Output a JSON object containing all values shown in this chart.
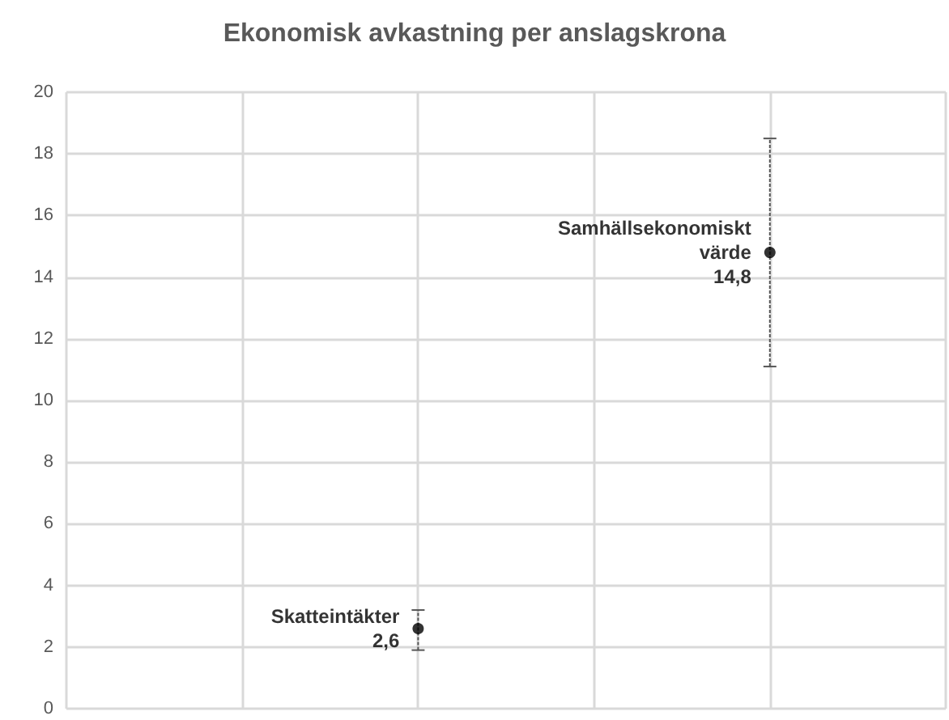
{
  "chart_data": {
    "type": "scatter",
    "title": "Ekonomisk avkastning per anslagskrona",
    "categories": [
      null,
      null,
      null,
      null,
      null,
      null
    ],
    "ylim": [
      0,
      20
    ],
    "yticks": [
      0,
      2,
      4,
      6,
      8,
      10,
      12,
      14,
      16,
      18,
      20
    ],
    "tick_labels": "y",
    "grid": true,
    "marker": "circle",
    "series": [
      {
        "name": "Skatteintäkter",
        "color": "#000000",
        "values": [
          null,
          null,
          2.6,
          null,
          null,
          null
        ],
        "errors": [
          null,
          null,
          [
            1.9,
            3.2
          ],
          null,
          null,
          null
        ],
        "value_labels": [
          null,
          null,
          "2,6",
          null,
          null,
          null
        ]
      },
      {
        "name": "Samhällsekonomiskt värde",
        "color": "#000000",
        "values": [
          null,
          null,
          null,
          null,
          14.8,
          null
        ],
        "errors": [
          null,
          null,
          null,
          null,
          [
            11.1,
            18.5
          ],
          null
        ],
        "value_labels": [
          null,
          null,
          null,
          null,
          "14,8",
          null
        ]
      }
    ]
  }
}
